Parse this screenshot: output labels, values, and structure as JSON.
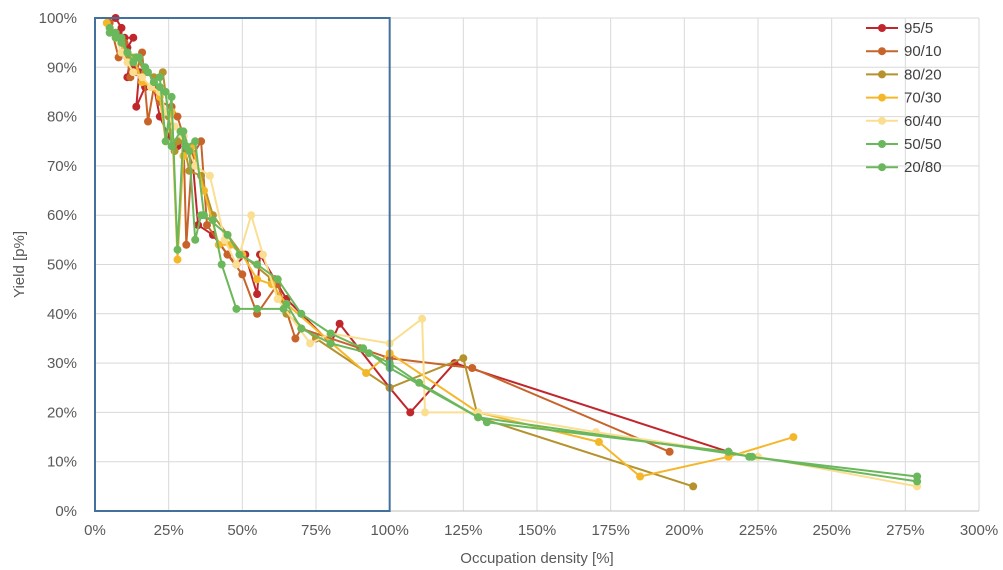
{
  "chart_data": {
    "type": "line",
    "title": "",
    "xlabel": "Occupation density [%]",
    "ylabel": "Yield [p%]",
    "xlim": [
      0,
      300
    ],
    "ylim": [
      0,
      100
    ],
    "x_ticks": [
      0,
      25,
      50,
      75,
      100,
      125,
      150,
      175,
      200,
      225,
      250,
      275,
      300
    ],
    "y_ticks": [
      0,
      10,
      20,
      30,
      40,
      50,
      60,
      70,
      80,
      90,
      100
    ],
    "x_tick_labels": [
      "0%",
      "25%",
      "50%",
      "75%",
      "100%",
      "125%",
      "150%",
      "175%",
      "200%",
      "225%",
      "250%",
      "275%",
      "300%"
    ],
    "y_tick_labels": [
      "0%",
      "10%",
      "20%",
      "30%",
      "40%",
      "50%",
      "60%",
      "70%",
      "80%",
      "90%",
      "100%"
    ],
    "grid": true,
    "legend_position": "right",
    "highlight_region": {
      "x": [
        0,
        100
      ],
      "y": [
        0,
        100
      ],
      "color": "#41719c"
    },
    "series": [
      {
        "name": "95/5",
        "color": "#c0272d",
        "points": [
          [
            7,
            100
          ],
          [
            9,
            98
          ],
          [
            8,
            97
          ],
          [
            10,
            96
          ],
          [
            13,
            96
          ],
          [
            11,
            94
          ],
          [
            12,
            92
          ],
          [
            11,
            88
          ],
          [
            13,
            90
          ],
          [
            15,
            89
          ],
          [
            14,
            82
          ],
          [
            17,
            86
          ],
          [
            20,
            86
          ],
          [
            22,
            80
          ],
          [
            25,
            76
          ],
          [
            28,
            74
          ],
          [
            30,
            75
          ],
          [
            33,
            72
          ],
          [
            35,
            58
          ],
          [
            40,
            56
          ],
          [
            45,
            52
          ],
          [
            48,
            50
          ],
          [
            51,
            52
          ],
          [
            55,
            44
          ],
          [
            56,
            52
          ],
          [
            61,
            47
          ],
          [
            65,
            43
          ],
          [
            80,
            34
          ],
          [
            83,
            38
          ],
          [
            100,
            25
          ],
          [
            107,
            20
          ],
          [
            122,
            30
          ],
          [
            215,
            12
          ]
        ]
      },
      {
        "name": "90/10",
        "color": "#c8632a",
        "points": [
          [
            5,
            99
          ],
          [
            8,
            92
          ],
          [
            10,
            95
          ],
          [
            12,
            88
          ],
          [
            14,
            89
          ],
          [
            16,
            93
          ],
          [
            18,
            79
          ],
          [
            20,
            86
          ],
          [
            22,
            83
          ],
          [
            26,
            82
          ],
          [
            28,
            80
          ],
          [
            30,
            76
          ],
          [
            31,
            54
          ],
          [
            33,
            72
          ],
          [
            36,
            75
          ],
          [
            38,
            58
          ],
          [
            45,
            52
          ],
          [
            50,
            48
          ],
          [
            55,
            40
          ],
          [
            62,
            46
          ],
          [
            68,
            35
          ],
          [
            70,
            37
          ],
          [
            90,
            33
          ],
          [
            100,
            31
          ],
          [
            128,
            29
          ],
          [
            195,
            12
          ]
        ]
      },
      {
        "name": "80/20",
        "color": "#b5922d",
        "points": [
          [
            5,
            98
          ],
          [
            8,
            96
          ],
          [
            11,
            92
          ],
          [
            14,
            92
          ],
          [
            17,
            89
          ],
          [
            20,
            88
          ],
          [
            23,
            89
          ],
          [
            25,
            80
          ],
          [
            27,
            73
          ],
          [
            28,
            75
          ],
          [
            30,
            75
          ],
          [
            32,
            69
          ],
          [
            36,
            68
          ],
          [
            40,
            60
          ],
          [
            50,
            52
          ],
          [
            60,
            47
          ],
          [
            65,
            40
          ],
          [
            75,
            35
          ],
          [
            100,
            25
          ],
          [
            125,
            31
          ],
          [
            130,
            19
          ],
          [
            203,
            5
          ]
        ]
      },
      {
        "name": "70/30",
        "color": "#f5b72a",
        "points": [
          [
            4,
            99
          ],
          [
            7,
            97
          ],
          [
            10,
            93
          ],
          [
            13,
            92
          ],
          [
            16,
            87
          ],
          [
            19,
            86
          ],
          [
            22,
            84
          ],
          [
            24,
            75
          ],
          [
            26,
            81
          ],
          [
            28,
            51
          ],
          [
            30,
            72
          ],
          [
            33,
            74
          ],
          [
            37,
            65
          ],
          [
            42,
            54
          ],
          [
            46,
            54
          ],
          [
            50,
            52
          ],
          [
            55,
            47
          ],
          [
            60,
            46
          ],
          [
            65,
            42
          ],
          [
            92,
            28
          ],
          [
            100,
            32
          ],
          [
            130,
            20
          ],
          [
            171,
            14
          ],
          [
            185,
            7
          ],
          [
            215,
            11
          ],
          [
            237,
            15
          ]
        ]
      },
      {
        "name": "60/40",
        "color": "#fadf92",
        "points": [
          [
            5,
            98
          ],
          [
            7,
            96
          ],
          [
            9,
            93
          ],
          [
            11,
            91
          ],
          [
            13,
            89
          ],
          [
            16,
            88
          ],
          [
            19,
            86
          ],
          [
            22,
            85
          ],
          [
            24,
            81
          ],
          [
            27,
            78
          ],
          [
            30,
            76
          ],
          [
            34,
            70
          ],
          [
            39,
            68
          ],
          [
            44,
            55
          ],
          [
            48,
            50
          ],
          [
            53,
            60
          ],
          [
            57,
            52
          ],
          [
            62,
            43
          ],
          [
            73,
            34
          ],
          [
            80,
            36
          ],
          [
            100,
            34
          ],
          [
            111,
            39
          ],
          [
            112,
            20
          ],
          [
            130,
            20
          ],
          [
            170,
            16
          ],
          [
            225,
            11
          ],
          [
            279,
            5
          ]
        ]
      },
      {
        "name": "50/50",
        "color": "#6ab75c",
        "points": [
          [
            5,
            98
          ],
          [
            7,
            97
          ],
          [
            9,
            96
          ],
          [
            11,
            93
          ],
          [
            14,
            92
          ],
          [
            17,
            90
          ],
          [
            20,
            87
          ],
          [
            22,
            88
          ],
          [
            24,
            75
          ],
          [
            26,
            84
          ],
          [
            28,
            53
          ],
          [
            30,
            77
          ],
          [
            32,
            73
          ],
          [
            34,
            55
          ],
          [
            36,
            60
          ],
          [
            40,
            59
          ],
          [
            43,
            50
          ],
          [
            48,
            41
          ],
          [
            55,
            41
          ],
          [
            64,
            41
          ],
          [
            65,
            42
          ],
          [
            70,
            37
          ],
          [
            80,
            34
          ],
          [
            93,
            32
          ],
          [
            100,
            30
          ],
          [
            110,
            26
          ],
          [
            130,
            19
          ],
          [
            223,
            11
          ],
          [
            279,
            6
          ]
        ]
      },
      {
        "name": "20/80",
        "color": "#6ab75c",
        "points": [
          [
            5,
            97
          ],
          [
            7,
            96
          ],
          [
            9,
            95
          ],
          [
            11,
            93
          ],
          [
            13,
            91
          ],
          [
            15,
            92
          ],
          [
            18,
            89
          ],
          [
            20,
            87
          ],
          [
            22,
            86
          ],
          [
            24,
            85
          ],
          [
            26,
            74
          ],
          [
            29,
            77
          ],
          [
            31,
            74
          ],
          [
            34,
            75
          ],
          [
            37,
            60
          ],
          [
            45,
            56
          ],
          [
            49,
            52
          ],
          [
            55,
            50
          ],
          [
            62,
            47
          ],
          [
            70,
            40
          ],
          [
            80,
            36
          ],
          [
            91,
            33
          ],
          [
            100,
            29
          ],
          [
            133,
            18
          ],
          [
            215,
            12
          ],
          [
            222,
            11
          ],
          [
            279,
            7
          ]
        ]
      }
    ]
  }
}
